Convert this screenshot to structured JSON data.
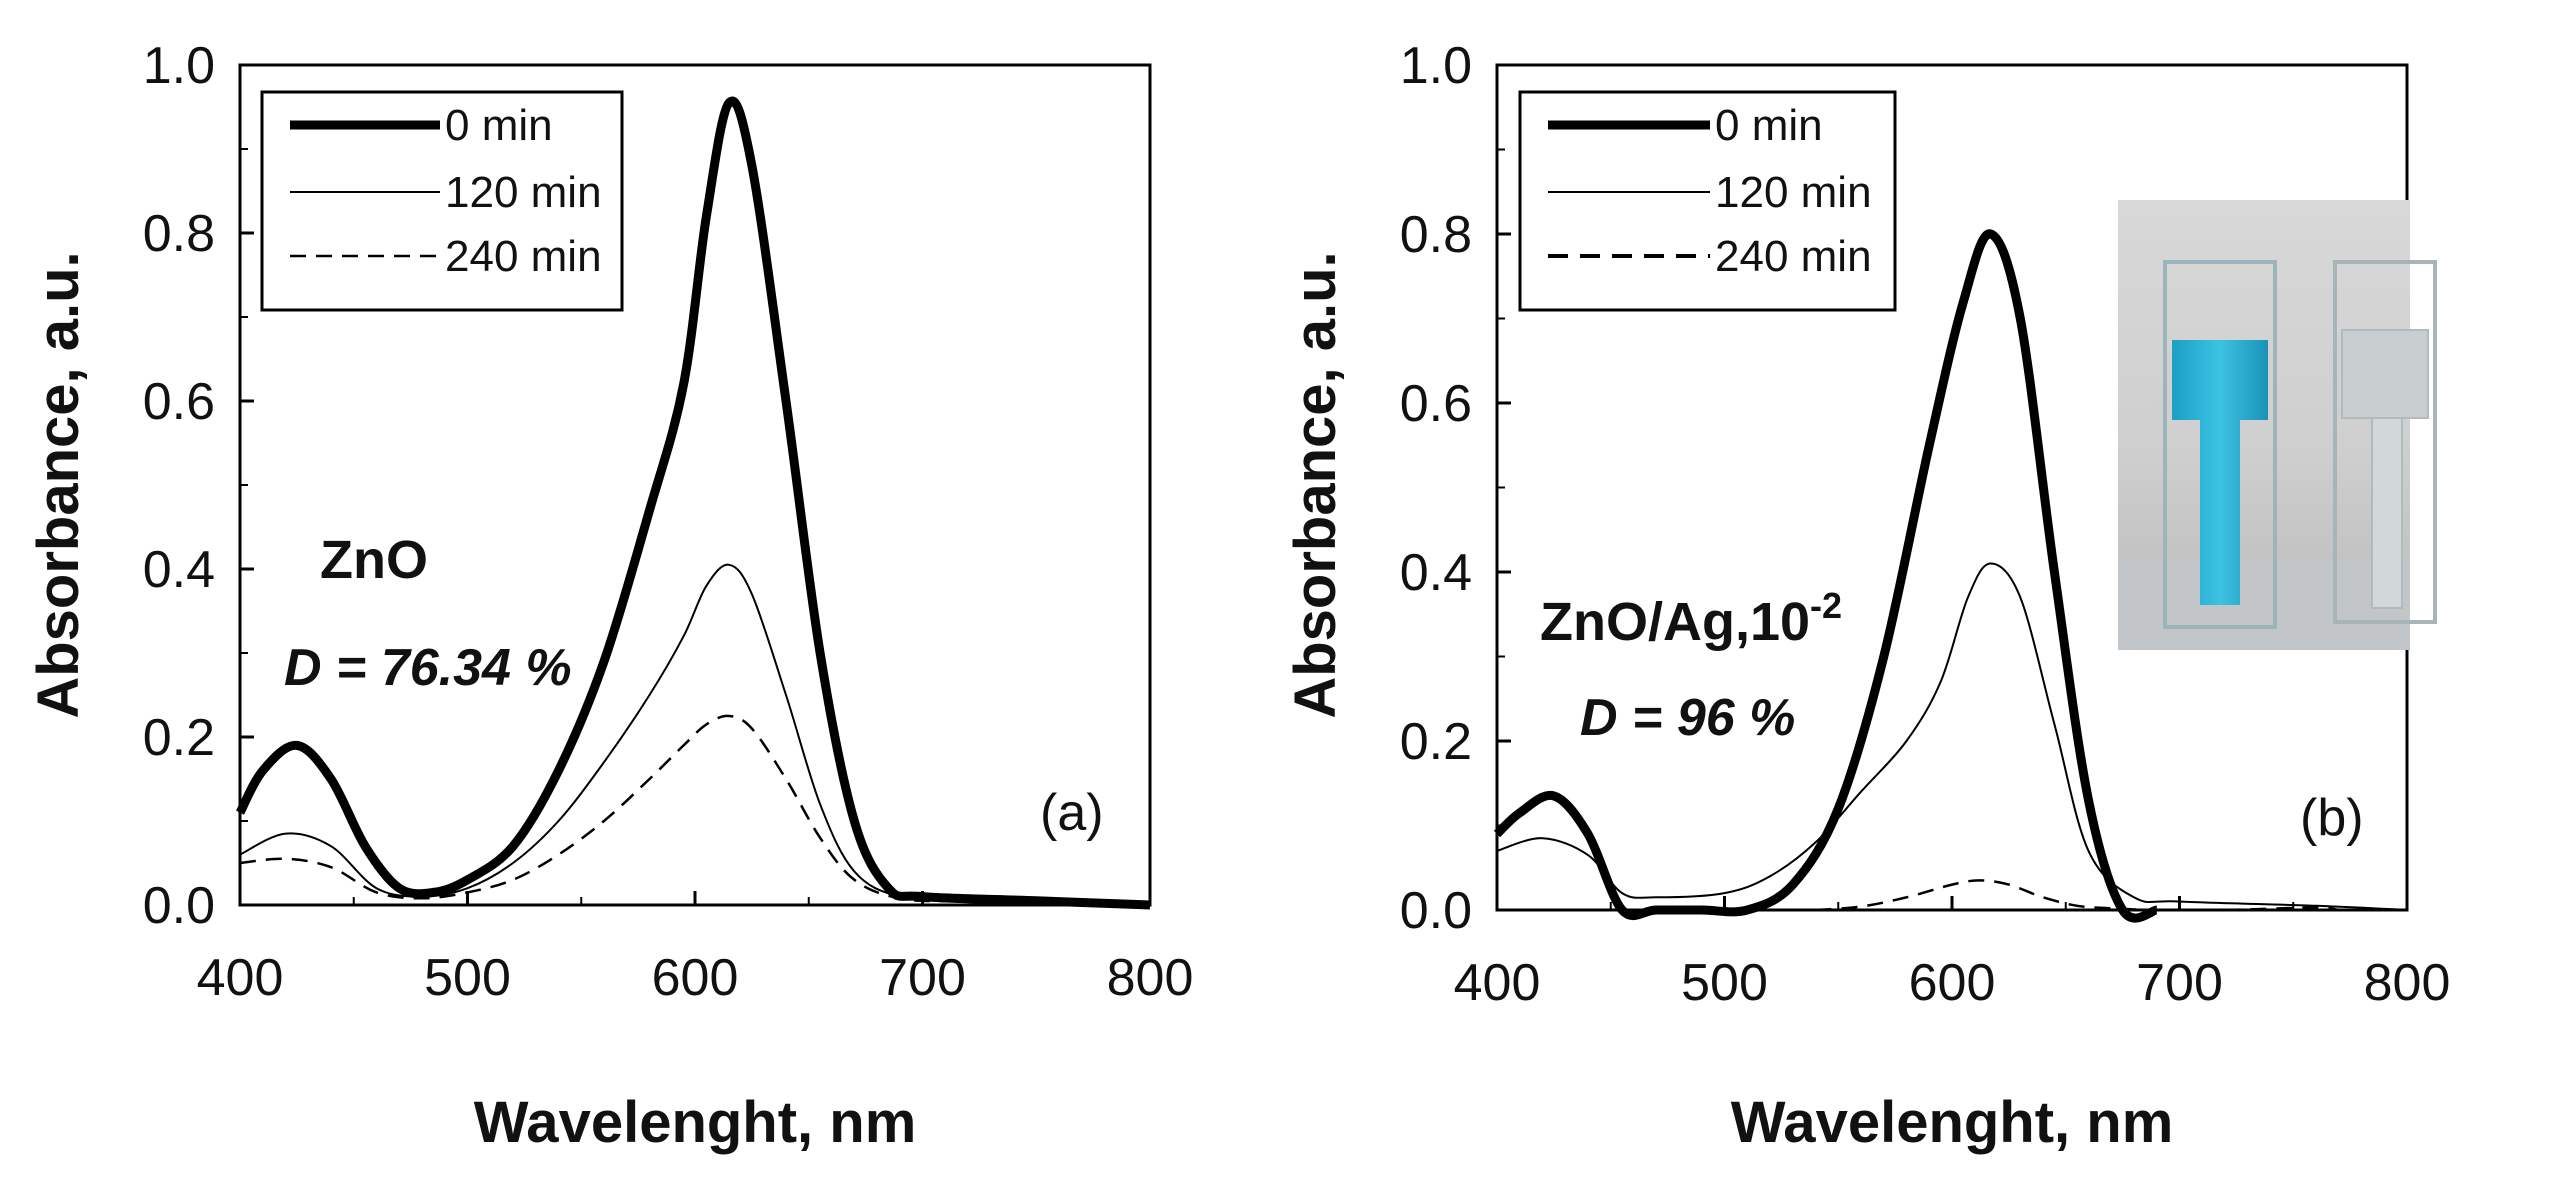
{
  "chart_data": [
    {
      "type": "line",
      "panel_label": "(a)",
      "material": "ZnO",
      "degradation_prefix": "D",
      "degradation_value": " = 76.34 %",
      "xlabel": "Wavelenght, nm",
      "ylabel": "Absorbance, a.u.",
      "xlim": [
        400,
        800
      ],
      "ylim": [
        0.0,
        1.0
      ],
      "xticks": [
        "400",
        "500",
        "600",
        "700",
        "800"
      ],
      "yticks": [
        "0.0",
        "0.2",
        "0.4",
        "0.6",
        "0.8",
        "1.0"
      ],
      "legend": [
        "0 min",
        "120 min",
        "240 min"
      ],
      "series": [
        {
          "name": "0 min",
          "style": "thick",
          "x": [
            400,
            410,
            425,
            440,
            455,
            470,
            485,
            500,
            520,
            540,
            560,
            580,
            595,
            605,
            615,
            625,
            640,
            655,
            670,
            685,
            700,
            750,
            800
          ],
          "y": [
            0.11,
            0.16,
            0.19,
            0.15,
            0.07,
            0.02,
            0.015,
            0.03,
            0.07,
            0.16,
            0.29,
            0.47,
            0.62,
            0.82,
            0.955,
            0.88,
            0.6,
            0.3,
            0.1,
            0.02,
            0.01,
            0.005,
            0.0
          ]
        },
        {
          "name": "120 min",
          "style": "thin",
          "x": [
            400,
            420,
            440,
            460,
            480,
            500,
            520,
            540,
            560,
            580,
            595,
            605,
            615,
            625,
            640,
            655,
            670,
            690,
            720,
            800
          ],
          "y": [
            0.06,
            0.085,
            0.07,
            0.02,
            0.01,
            0.02,
            0.05,
            0.1,
            0.17,
            0.25,
            0.32,
            0.38,
            0.405,
            0.37,
            0.25,
            0.12,
            0.04,
            0.01,
            0.005,
            0.0
          ]
        },
        {
          "name": "240 min",
          "style": "dashed",
          "x": [
            400,
            420,
            440,
            460,
            480,
            500,
            520,
            540,
            560,
            580,
            595,
            605,
            615,
            625,
            640,
            655,
            670,
            690,
            720,
            800
          ],
          "y": [
            0.05,
            0.055,
            0.045,
            0.015,
            0.008,
            0.015,
            0.03,
            0.06,
            0.1,
            0.15,
            0.19,
            0.215,
            0.225,
            0.21,
            0.15,
            0.08,
            0.03,
            0.008,
            0.004,
            0.0
          ]
        }
      ]
    },
    {
      "type": "line",
      "panel_label": "(b)",
      "material": "ZnO/Ag,10",
      "material_sup": "-2",
      "degradation_prefix": "D",
      "degradation_value": " = 96 %",
      "xlabel": "Wavelenght, nm",
      "ylabel": "Absorbance, a.u.",
      "xlim": [
        400,
        800
      ],
      "ylim": [
        0.0,
        1.0
      ],
      "xticks": [
        "400",
        "500",
        "600",
        "700",
        "800"
      ],
      "yticks": [
        "0.0",
        "0.2",
        "0.4",
        "0.6",
        "0.8",
        "1.0"
      ],
      "legend": [
        "0 min",
        "120 min",
        "240 min"
      ],
      "inset": "photo of two cuvettes: blue dye solution (left) and decolorized solution (right)",
      "series": [
        {
          "name": "0 min",
          "style": "thick",
          "x": [
            400,
            410,
            425,
            440,
            455,
            470,
            490,
            510,
            530,
            550,
            570,
            590,
            605,
            617,
            630,
            645,
            660,
            675,
            690
          ],
          "y": [
            0.09,
            0.115,
            0.135,
            0.09,
            0.0,
            0.0,
            0.0,
            0.0,
            0.03,
            0.12,
            0.3,
            0.55,
            0.72,
            0.8,
            0.7,
            0.4,
            0.13,
            0.0,
            0.0
          ]
        },
        {
          "name": "120 min",
          "style": "thin",
          "x": [
            400,
            420,
            440,
            455,
            470,
            500,
            520,
            540,
            560,
            580,
            595,
            607,
            617,
            630,
            645,
            660,
            680,
            700,
            760,
            800
          ],
          "y": [
            0.07,
            0.085,
            0.065,
            0.02,
            0.015,
            0.02,
            0.04,
            0.08,
            0.14,
            0.2,
            0.27,
            0.37,
            0.41,
            0.37,
            0.22,
            0.07,
            0.015,
            0.01,
            0.005,
            0.0
          ]
        },
        {
          "name": "240 min",
          "style": "dashed",
          "x": [
            540,
            560,
            580,
            600,
            612,
            625,
            640,
            655,
            670,
            690,
            720,
            760,
            770
          ],
          "y": [
            0.0,
            0.004,
            0.015,
            0.03,
            0.035,
            0.03,
            0.015,
            0.005,
            0.002,
            0.0,
            0.0,
            0.003,
            0.0
          ]
        }
      ]
    }
  ]
}
